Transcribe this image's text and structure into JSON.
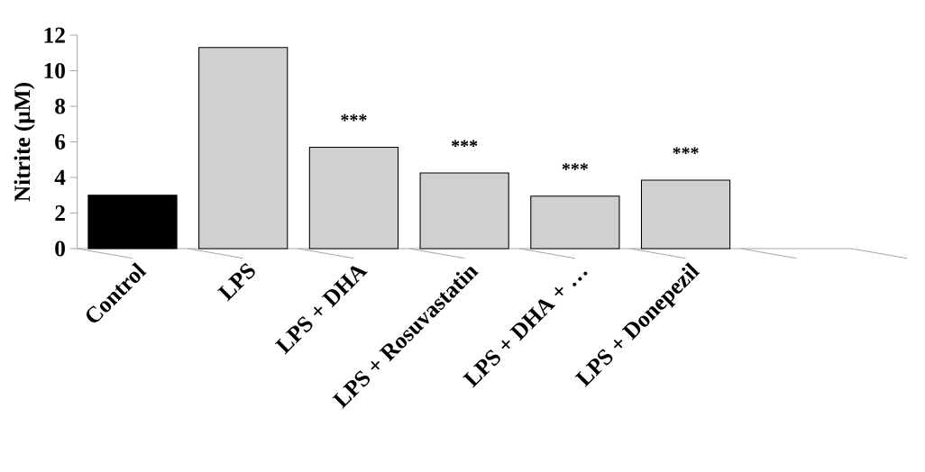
{
  "chart_data": {
    "type": "bar",
    "ylabel": "Nitrite (μM)",
    "categories": [
      "Control",
      "LPS",
      "LPS + DHA",
      "LPS + Rosuvastatin",
      "LPS + DHA + …",
      "LPS + Donepezil",
      null
    ],
    "values": [
      3.0,
      11.3,
      5.7,
      4.25,
      2.95,
      3.85,
      null
    ],
    "colors": [
      "#000000",
      "#d0d0d0",
      "#d0d0d0",
      "#d0d0d0",
      "#d0d0d0",
      "#d0d0d0",
      "#d0d0d0"
    ],
    "value_labels": [
      null,
      null,
      "***",
      "***",
      "***",
      "***",
      null
    ],
    "ylim": [
      0,
      12
    ],
    "yticks": [
      0,
      2,
      4,
      6,
      8,
      10,
      12
    ]
  }
}
